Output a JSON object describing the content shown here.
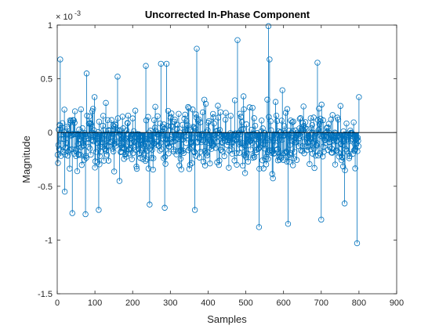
{
  "chart_data": {
    "type": "stem",
    "title": "Uncorrected In-Phase Component",
    "xlabel": "Samples",
    "ylabel": "Magnitude",
    "y_exponent_label": "× 10",
    "y_exponent_power": "-3",
    "xlim": [
      0,
      900
    ],
    "ylim": [
      -1.5,
      1
    ],
    "y_scale_factor": 0.001,
    "xticks": [
      0,
      100,
      200,
      300,
      400,
      500,
      600,
      700,
      800,
      900
    ],
    "xtick_labels": [
      "0",
      "100",
      "200",
      "300",
      "400",
      "500",
      "600",
      "700",
      "800",
      "900"
    ],
    "yticks": [
      -1.5,
      -1,
      -0.5,
      0,
      0.5,
      1
    ],
    "ytick_labels": [
      "-1.5",
      "-1",
      "-0.5",
      "0",
      "0.5",
      "1"
    ],
    "grid": false,
    "legend": "none",
    "series_color": "#0072BD",
    "baseline": 0,
    "n_samples": 800,
    "notable_points": [
      {
        "x": 8,
        "y": 0.68
      },
      {
        "x": 20,
        "y": -0.55
      },
      {
        "x": 40,
        "y": -0.75
      },
      {
        "x": 75,
        "y": -0.76
      },
      {
        "x": 78,
        "y": 0.55
      },
      {
        "x": 110,
        "y": -0.72
      },
      {
        "x": 160,
        "y": 0.52
      },
      {
        "x": 235,
        "y": 0.62
      },
      {
        "x": 245,
        "y": -0.67
      },
      {
        "x": 275,
        "y": 0.64
      },
      {
        "x": 285,
        "y": -0.7
      },
      {
        "x": 290,
        "y": 0.64
      },
      {
        "x": 370,
        "y": 0.78
      },
      {
        "x": 365,
        "y": -0.72
      },
      {
        "x": 478,
        "y": 0.86
      },
      {
        "x": 535,
        "y": -0.88
      },
      {
        "x": 560,
        "y": 0.99
      },
      {
        "x": 563,
        "y": 0.68
      },
      {
        "x": 612,
        "y": -0.85
      },
      {
        "x": 690,
        "y": 0.65
      },
      {
        "x": 700,
        "y": -0.81
      },
      {
        "x": 762,
        "y": -0.66
      },
      {
        "x": 795,
        "y": -1.03
      },
      {
        "x": 800,
        "y": 0.33
      }
    ]
  }
}
